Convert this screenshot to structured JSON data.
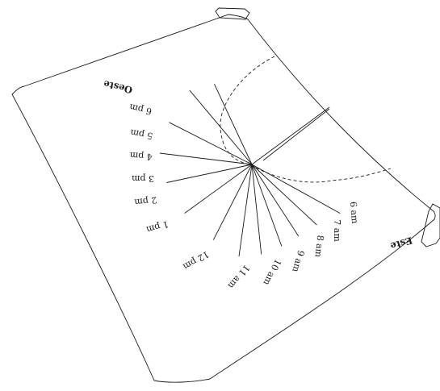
{
  "directions": {
    "west": "Oeste",
    "east": "Este"
  },
  "hour_lines": [
    {
      "label": "6 pm",
      "hour": 18
    },
    {
      "label": "5 pm",
      "hour": 17
    },
    {
      "label": "4 pm",
      "hour": 16
    },
    {
      "label": "3 pm",
      "hour": 15
    },
    {
      "label": "2 pm",
      "hour": 14
    },
    {
      "label": "1 pm",
      "hour": 13
    },
    {
      "label": "12 pm",
      "hour": 12
    },
    {
      "label": "11 am",
      "hour": 11
    },
    {
      "label": "10 am",
      "hour": 10
    },
    {
      "label": "9 am",
      "hour": 9
    },
    {
      "label": "8 am",
      "hour": 8
    },
    {
      "label": "7 am",
      "hour": 7
    },
    {
      "label": "6 am",
      "hour": 6
    }
  ]
}
